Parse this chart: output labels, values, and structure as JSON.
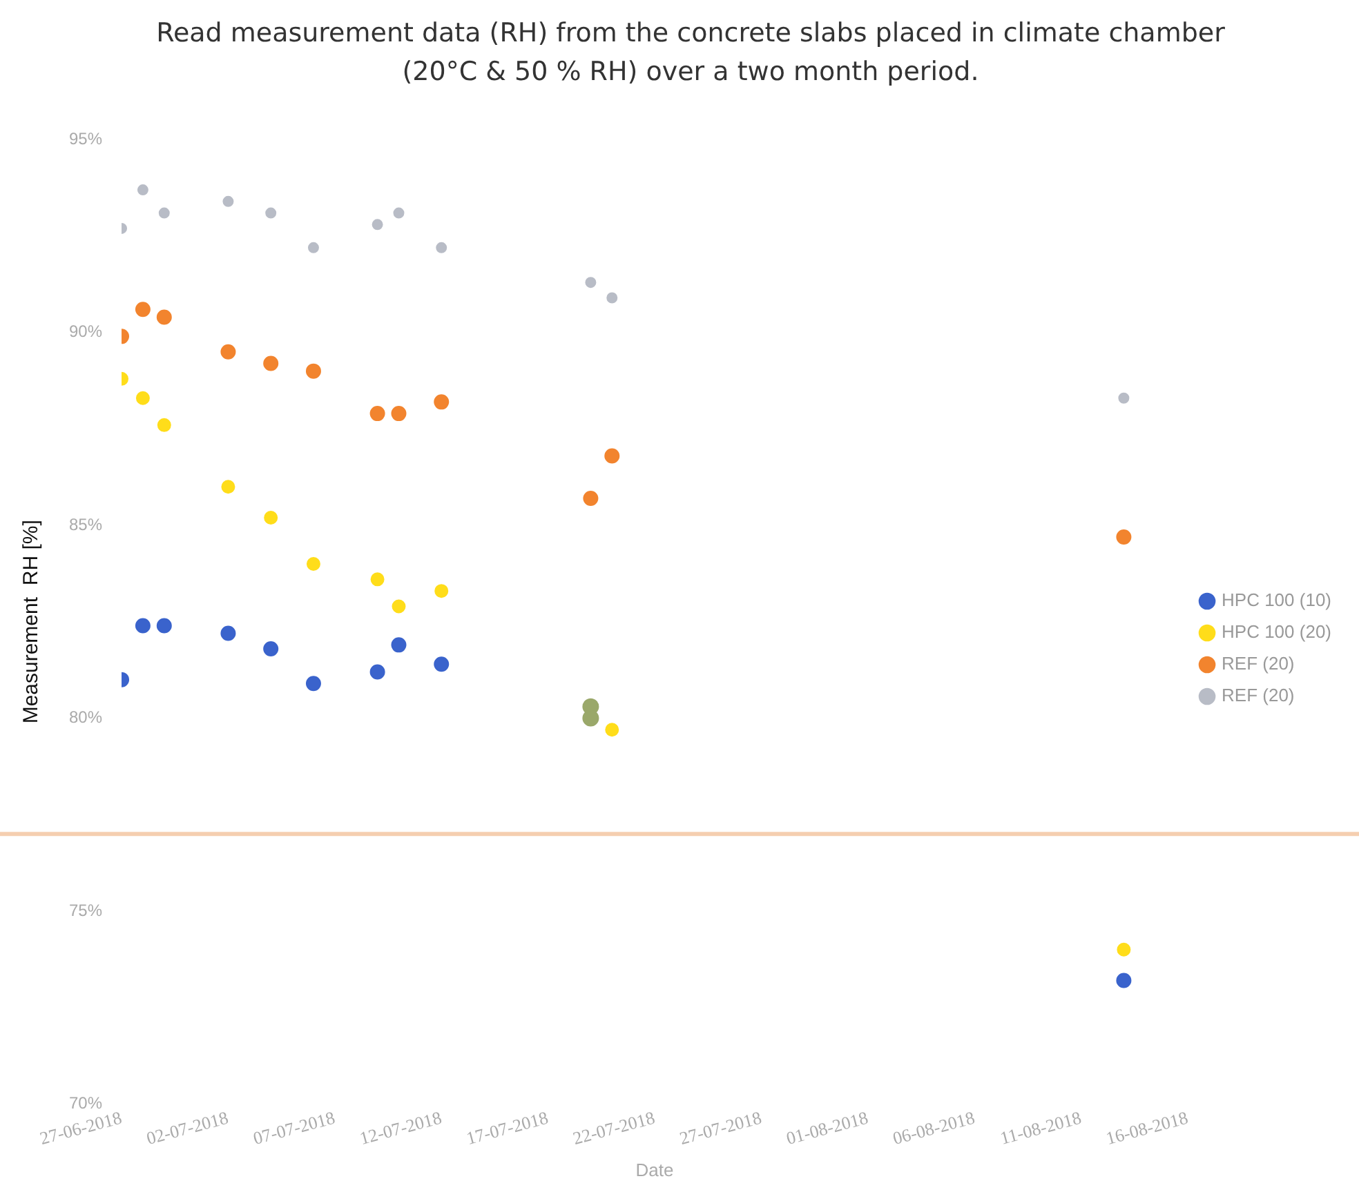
{
  "chart_data": {
    "type": "scatter",
    "title": "Read measurement data (RH) from the concrete slabs placed in climate chamber (20°C & 50 % RH) over a two month period.",
    "xlabel": "Date",
    "ylabel": "Measurement  RH [%]",
    "xlim": [
      "2018-06-27",
      "2018-08-16"
    ],
    "xticks": [
      {
        "value": "2018-06-27",
        "label": "27-06-2018"
      },
      {
        "value": "2018-07-02",
        "label": "02-07-2018"
      },
      {
        "value": "2018-07-07",
        "label": "07-07-2018"
      },
      {
        "value": "2018-07-12",
        "label": "12-07-2018"
      },
      {
        "value": "2018-07-17",
        "label": "17-07-2018"
      },
      {
        "value": "2018-07-22",
        "label": "22-07-2018"
      },
      {
        "value": "2018-07-27",
        "label": "27-07-2018"
      },
      {
        "value": "2018-08-01",
        "label": "01-08-2018"
      },
      {
        "value": "2018-08-06",
        "label": "06-08-2018"
      },
      {
        "value": "2018-08-11",
        "label": "11-08-2018"
      },
      {
        "value": "2018-08-16",
        "label": "16-08-2018"
      }
    ],
    "ylim": [
      70,
      95
    ],
    "yticks": [
      {
        "value": 70,
        "label": "70%"
      },
      {
        "value": 75,
        "label": "75%"
      },
      {
        "value": 80,
        "label": "80%"
      },
      {
        "value": 85,
        "label": "85%"
      },
      {
        "value": 90,
        "label": "90%"
      },
      {
        "value": 95,
        "label": "95%"
      }
    ],
    "grid": false,
    "legend": "right",
    "marker": "circle",
    "ref_lines": [
      {
        "axis": "y",
        "value": 77,
        "color": "#f5cfb0"
      }
    ],
    "series": [
      {
        "name": "HPC 100 (10)",
        "color": "#3a63cc",
        "x": [
          "2018-06-27",
          "2018-06-28",
          "2018-06-29",
          "2018-07-02",
          "2018-07-04",
          "2018-07-06",
          "2018-07-09",
          "2018-07-10",
          "2018-07-12",
          "2018-08-13"
        ],
        "values": [
          81.0,
          82.4,
          82.4,
          82.2,
          81.8,
          80.9,
          81.2,
          81.9,
          81.4,
          73.2
        ]
      },
      {
        "name": "HPC 100 (20)",
        "color": "#ffdd1a",
        "x": [
          "2018-06-27",
          "2018-06-28",
          "2018-06-29",
          "2018-07-02",
          "2018-07-04",
          "2018-07-06",
          "2018-07-09",
          "2018-07-10",
          "2018-07-12",
          "2018-07-20",
          "2018-08-13"
        ],
        "values": [
          88.8,
          88.3,
          87.6,
          86.0,
          85.2,
          84.0,
          83.6,
          82.9,
          83.3,
          79.7,
          74.0
        ]
      },
      {
        "name": "REF (20)",
        "color": "#f2842e",
        "x": [
          "2018-06-27",
          "2018-06-28",
          "2018-06-29",
          "2018-07-02",
          "2018-07-04",
          "2018-07-06",
          "2018-07-09",
          "2018-07-10",
          "2018-07-12",
          "2018-07-19",
          "2018-07-20",
          "2018-08-13"
        ],
        "values": [
          89.9,
          90.6,
          90.4,
          89.5,
          89.2,
          89.0,
          87.9,
          87.9,
          88.2,
          85.7,
          86.8,
          84.7
        ]
      },
      {
        "name": "REF (20)",
        "color": "#b8bcc6",
        "x": [
          "2018-06-27",
          "2018-06-28",
          "2018-06-29",
          "2018-07-02",
          "2018-07-04",
          "2018-07-06",
          "2018-07-09",
          "2018-07-10",
          "2018-07-12",
          "2018-07-19",
          "2018-07-20",
          "2018-08-13"
        ],
        "values": [
          92.7,
          93.7,
          93.1,
          93.4,
          93.1,
          92.2,
          92.8,
          93.1,
          92.2,
          91.3,
          90.9,
          88.3
        ]
      },
      {
        "color": "#9aa86a",
        "x": [
          "2018-07-19",
          "2018-07-19"
        ],
        "values": [
          80.3,
          80.0
        ]
      }
    ]
  }
}
